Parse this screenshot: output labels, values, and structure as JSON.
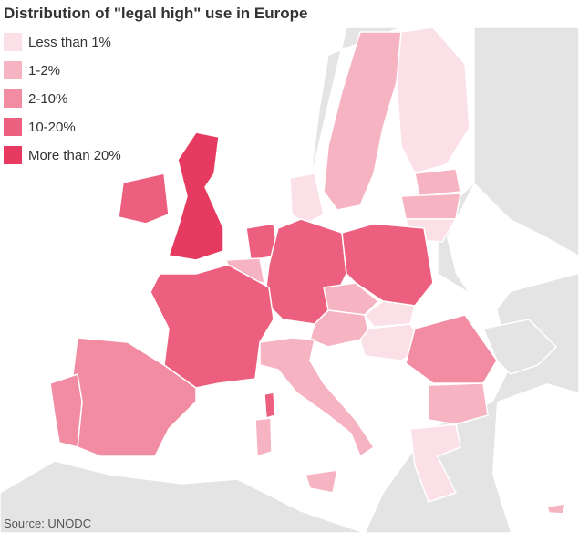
{
  "title": "Distribution of \"legal high\" use in Europe",
  "legend": [
    {
      "label": "Less than 1%",
      "color": "#fbe1e7"
    },
    {
      "label": "1-2%",
      "color": "#f6b4c3"
    },
    {
      "label": "2-10%",
      "color": "#f18ca3"
    },
    {
      "label": "10-20%",
      "color": "#ec5f7e"
    },
    {
      "label": "More than 20%",
      "color": "#e63a60"
    }
  ],
  "source": "Source: UNODC"
}
